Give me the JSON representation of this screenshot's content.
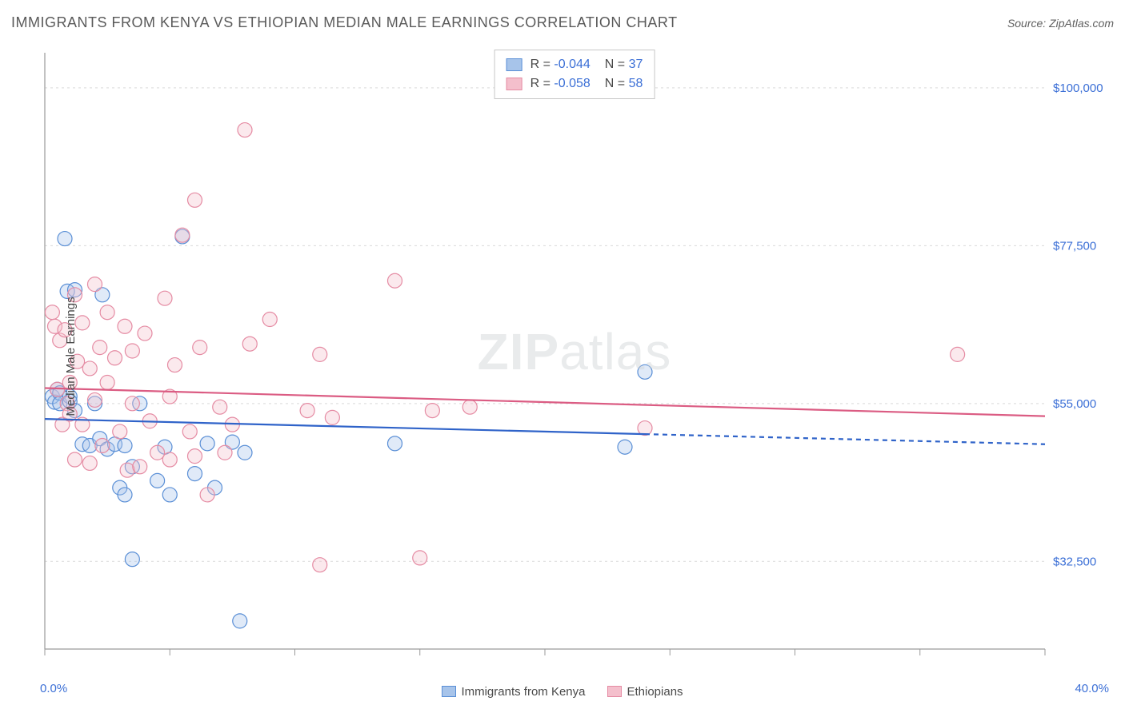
{
  "chart": {
    "type": "scatter",
    "title": "IMMIGRANTS FROM KENYA VS ETHIOPIAN MEDIAN MALE EARNINGS CORRELATION CHART",
    "source_label": "Source: ZipAtlas.com",
    "watermark": {
      "bold": "ZIP",
      "rest": "atlas"
    },
    "ylabel": "Median Male Earnings",
    "xlim": [
      0,
      40
    ],
    "ylim": [
      20000,
      105000
    ],
    "x_range_labels": {
      "min": "0.0%",
      "max": "40.0%"
    },
    "y_ticks": [
      {
        "v": 32500,
        "label": "$32,500"
      },
      {
        "v": 55000,
        "label": "$55,000"
      },
      {
        "v": 77500,
        "label": "$77,500"
      },
      {
        "v": 100000,
        "label": "$100,000"
      }
    ],
    "x_tick_step": 5,
    "grid_color": "#d9d9d9",
    "axis_color": "#9a9a9a",
    "background_color": "#ffffff",
    "marker_radius": 9,
    "marker_fill_opacity": 0.35,
    "marker_stroke_width": 1.2,
    "trend_line_width": 2.2,
    "series": [
      {
        "name": "Immigrants from Kenya",
        "legend_label": "Immigrants from Kenya",
        "color_stroke": "#5a8fd6",
        "color_fill": "#a7c4ea",
        "trend_color": "#2f63c9",
        "R": -0.044,
        "N": 37,
        "trend": {
          "y_at_xmin": 52800,
          "y_at_xmax": 49200,
          "solid_until_x": 24
        },
        "points": [
          [
            0.3,
            56000
          ],
          [
            0.4,
            55200
          ],
          [
            0.5,
            57000
          ],
          [
            0.6,
            56500
          ],
          [
            0.6,
            55000
          ],
          [
            0.8,
            78500
          ],
          [
            0.9,
            71000
          ],
          [
            1.0,
            56000
          ],
          [
            1.0,
            55300
          ],
          [
            1.2,
            54000
          ],
          [
            1.2,
            71200
          ],
          [
            1.5,
            49200
          ],
          [
            1.8,
            49000
          ],
          [
            2.0,
            55000
          ],
          [
            2.2,
            50000
          ],
          [
            2.3,
            70500
          ],
          [
            2.5,
            48500
          ],
          [
            2.8,
            49200
          ],
          [
            3.0,
            43000
          ],
          [
            3.2,
            42000
          ],
          [
            3.2,
            49000
          ],
          [
            3.5,
            46000
          ],
          [
            3.5,
            32800
          ],
          [
            3.8,
            55000
          ],
          [
            4.5,
            44000
          ],
          [
            4.8,
            48800
          ],
          [
            5.0,
            42000
          ],
          [
            5.5,
            78800
          ],
          [
            6.0,
            45000
          ],
          [
            6.5,
            49300
          ],
          [
            6.8,
            43000
          ],
          [
            7.5,
            49500
          ],
          [
            7.8,
            24000
          ],
          [
            8.0,
            48000
          ],
          [
            14.0,
            49300
          ],
          [
            23.2,
            48800
          ],
          [
            24.0,
            59500
          ]
        ]
      },
      {
        "name": "Ethiopians",
        "legend_label": "Ethiopians",
        "color_stroke": "#e58ba3",
        "color_fill": "#f4bfcc",
        "trend_color": "#db5c83",
        "R": -0.058,
        "N": 58,
        "trend": {
          "y_at_xmin": 57200,
          "y_at_xmax": 53200,
          "solid_until_x": 40
        },
        "points": [
          [
            0.3,
            68000
          ],
          [
            0.4,
            66000
          ],
          [
            0.5,
            57000
          ],
          [
            0.6,
            64000
          ],
          [
            0.7,
            52000
          ],
          [
            0.8,
            65500
          ],
          [
            0.9,
            55000
          ],
          [
            1.0,
            58000
          ],
          [
            1.0,
            53500
          ],
          [
            1.2,
            70500
          ],
          [
            1.2,
            47000
          ],
          [
            1.3,
            61000
          ],
          [
            1.5,
            66500
          ],
          [
            1.5,
            52000
          ],
          [
            1.8,
            60000
          ],
          [
            1.8,
            46500
          ],
          [
            2.0,
            72000
          ],
          [
            2.0,
            55500
          ],
          [
            2.2,
            63000
          ],
          [
            2.3,
            49000
          ],
          [
            2.5,
            68000
          ],
          [
            2.5,
            58000
          ],
          [
            2.8,
            61500
          ],
          [
            3.0,
            51000
          ],
          [
            3.2,
            66000
          ],
          [
            3.3,
            45500
          ],
          [
            3.5,
            62500
          ],
          [
            3.5,
            55000
          ],
          [
            3.8,
            46000
          ],
          [
            4.0,
            65000
          ],
          [
            4.2,
            52500
          ],
          [
            4.5,
            48000
          ],
          [
            4.8,
            70000
          ],
          [
            5.0,
            56000
          ],
          [
            5.0,
            47000
          ],
          [
            5.2,
            60500
          ],
          [
            5.5,
            79000
          ],
          [
            5.8,
            51000
          ],
          [
            6.0,
            84000
          ],
          [
            6.0,
            47500
          ],
          [
            6.2,
            63000
          ],
          [
            6.5,
            42000
          ],
          [
            7.0,
            54500
          ],
          [
            7.2,
            48000
          ],
          [
            7.5,
            52000
          ],
          [
            8.0,
            94000
          ],
          [
            8.2,
            63500
          ],
          [
            9.0,
            67000
          ],
          [
            10.5,
            54000
          ],
          [
            11.0,
            62000
          ],
          [
            11.0,
            32000
          ],
          [
            11.5,
            53000
          ],
          [
            14.0,
            72500
          ],
          [
            15.0,
            33000
          ],
          [
            15.5,
            54000
          ],
          [
            17.0,
            54500
          ],
          [
            36.5,
            62000
          ],
          [
            24.0,
            51500
          ]
        ]
      }
    ]
  }
}
